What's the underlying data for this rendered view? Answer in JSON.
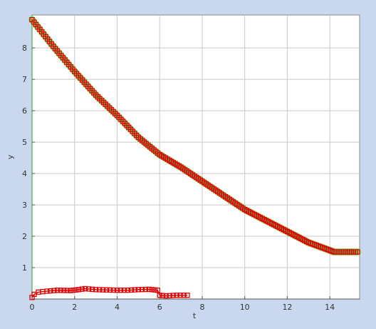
{
  "chart_data": {
    "type": "line",
    "xlabel": "t",
    "ylabel": "y",
    "xlim": [
      0,
      15.4
    ],
    "ylim": [
      0,
      9.05
    ],
    "xticks": [
      0,
      2,
      4,
      6,
      8,
      10,
      12,
      14
    ],
    "yticks": [
      1,
      2,
      3,
      4,
      5,
      6,
      7,
      8
    ],
    "grid": true,
    "series": [
      {
        "marker": "square",
        "line_color": "#7ddc57",
        "marker_color": "#e00000",
        "style": "thick-line-with-markers",
        "points": [
          [
            0,
            8.9
          ],
          [
            1,
            8.05
          ],
          [
            2,
            7.25
          ],
          [
            3,
            6.5
          ],
          [
            4,
            5.85
          ],
          [
            5,
            5.15
          ],
          [
            6,
            4.6
          ],
          [
            7,
            4.2
          ],
          [
            8,
            3.75
          ],
          [
            9,
            3.3
          ],
          [
            10,
            2.85
          ],
          [
            11,
            2.5
          ],
          [
            12,
            2.15
          ],
          [
            13,
            1.8
          ],
          [
            14.2,
            1.5
          ],
          [
            15.3,
            1.5
          ]
        ]
      },
      {
        "marker": "square",
        "line_color": "#e00000",
        "marker_color": "#e00000",
        "style": "line-with-markers",
        "points": [
          [
            0,
            0.05
          ],
          [
            0.1,
            0.15
          ],
          [
            0.3,
            0.22
          ],
          [
            0.7,
            0.25
          ],
          [
            1.2,
            0.28
          ],
          [
            1.8,
            0.27
          ],
          [
            2.2,
            0.3
          ],
          [
            2.5,
            0.33
          ],
          [
            3.0,
            0.3
          ],
          [
            3.5,
            0.29
          ],
          [
            4.0,
            0.28
          ],
          [
            4.5,
            0.28
          ],
          [
            5.0,
            0.3
          ],
          [
            5.5,
            0.31
          ],
          [
            5.9,
            0.28
          ],
          [
            6.0,
            0.12
          ],
          [
            6.3,
            0.1
          ],
          [
            6.8,
            0.12
          ],
          [
            7.3,
            0.12
          ]
        ]
      }
    ]
  }
}
